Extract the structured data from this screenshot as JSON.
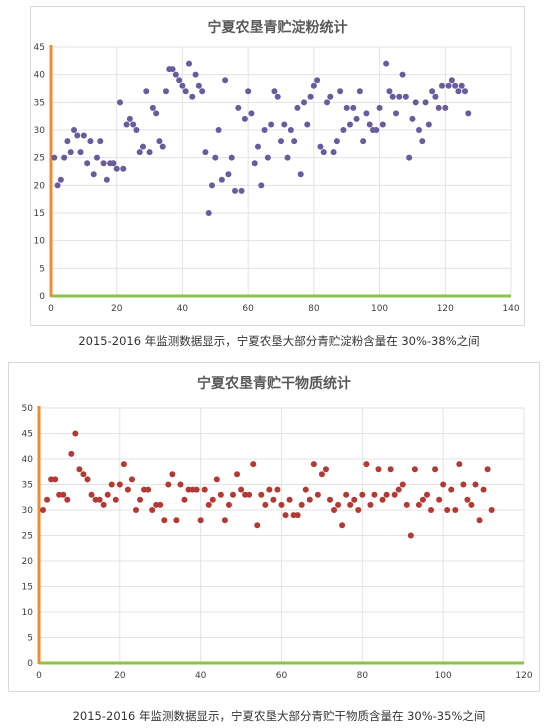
{
  "charts": [
    {
      "caption": "2015-2016 年监测数据显示，宁夏农垦大部分青贮淀粉含量在 30%-38%之间",
      "chart_data": {
        "type": "scatter",
        "title": "宁夏农垦青贮淀粉统计",
        "xlim": [
          0,
          140
        ],
        "ylim": [
          0,
          45
        ],
        "xticks": [
          0,
          20,
          40,
          60,
          80,
          100,
          120,
          140
        ],
        "yticks": [
          0,
          5,
          10,
          15,
          20,
          25,
          30,
          35,
          40,
          45
        ],
        "grid": true,
        "point_color": "#6a5a9e",
        "x_axis_color": "#8bc34a",
        "y_axis_color": "#f08c2d",
        "series": [
          {
            "points": [
              [
                1,
                25
              ],
              [
                2,
                20
              ],
              [
                3,
                21
              ],
              [
                4,
                25
              ],
              [
                5,
                28
              ],
              [
                6,
                26
              ],
              [
                7,
                30
              ],
              [
                8,
                29
              ],
              [
                9,
                26
              ],
              [
                10,
                29
              ],
              [
                11,
                24
              ],
              [
                12,
                28
              ],
              [
                13,
                22
              ],
              [
                14,
                25
              ],
              [
                15,
                28
              ],
              [
                16,
                24
              ],
              [
                17,
                21
              ],
              [
                18,
                24
              ],
              [
                19,
                24
              ],
              [
                20,
                23
              ],
              [
                21,
                35
              ],
              [
                22,
                23
              ],
              [
                23,
                31
              ],
              [
                24,
                32
              ],
              [
                25,
                31
              ],
              [
                26,
                30
              ],
              [
                27,
                26
              ],
              [
                28,
                27
              ],
              [
                29,
                37
              ],
              [
                30,
                26
              ],
              [
                31,
                34
              ],
              [
                32,
                33
              ],
              [
                33,
                28
              ],
              [
                34,
                27
              ],
              [
                35,
                37
              ],
              [
                36,
                41
              ],
              [
                37,
                41
              ],
              [
                38,
                40
              ],
              [
                39,
                39
              ],
              [
                40,
                38
              ],
              [
                41,
                37
              ],
              [
                42,
                42
              ],
              [
                43,
                36
              ],
              [
                44,
                40
              ],
              [
                45,
                38
              ],
              [
                46,
                37
              ],
              [
                47,
                26
              ],
              [
                48,
                15
              ],
              [
                49,
                20
              ],
              [
                50,
                25
              ],
              [
                51,
                30
              ],
              [
                52,
                21
              ],
              [
                53,
                39
              ],
              [
                54,
                22
              ],
              [
                55,
                25
              ],
              [
                56,
                19
              ],
              [
                57,
                34
              ],
              [
                58,
                19
              ],
              [
                59,
                32
              ],
              [
                60,
                37
              ],
              [
                61,
                33
              ],
              [
                62,
                24
              ],
              [
                63,
                27
              ],
              [
                64,
                20
              ],
              [
                65,
                30
              ],
              [
                66,
                25
              ],
              [
                67,
                31
              ],
              [
                68,
                37
              ],
              [
                69,
                36
              ],
              [
                70,
                28
              ],
              [
                71,
                31
              ],
              [
                72,
                25
              ],
              [
                73,
                30
              ],
              [
                74,
                28
              ],
              [
                75,
                34
              ],
              [
                76,
                22
              ],
              [
                77,
                35
              ],
              [
                78,
                31
              ],
              [
                79,
                36
              ],
              [
                80,
                38
              ],
              [
                81,
                39
              ],
              [
                82,
                27
              ],
              [
                83,
                26
              ],
              [
                84,
                35
              ],
              [
                85,
                36
              ],
              [
                86,
                26
              ],
              [
                87,
                28
              ],
              [
                88,
                37
              ],
              [
                89,
                30
              ],
              [
                90,
                34
              ],
              [
                91,
                31
              ],
              [
                92,
                34
              ],
              [
                93,
                32
              ],
              [
                94,
                37
              ],
              [
                95,
                28
              ],
              [
                96,
                33
              ],
              [
                97,
                31
              ],
              [
                98,
                30
              ],
              [
                99,
                30
              ],
              [
                100,
                34
              ],
              [
                101,
                31
              ],
              [
                102,
                42
              ],
              [
                103,
                37
              ],
              [
                104,
                36
              ],
              [
                105,
                33
              ],
              [
                106,
                36
              ],
              [
                107,
                40
              ],
              [
                108,
                36
              ],
              [
                109,
                25
              ],
              [
                110,
                32
              ],
              [
                111,
                35
              ],
              [
                112,
                30
              ],
              [
                113,
                28
              ],
              [
                114,
                35
              ],
              [
                115,
                31
              ],
              [
                116,
                37
              ],
              [
                117,
                36
              ],
              [
                118,
                34
              ],
              [
                119,
                38
              ],
              [
                120,
                34
              ],
              [
                121,
                38
              ],
              [
                122,
                39
              ],
              [
                123,
                38
              ],
              [
                124,
                37
              ],
              [
                125,
                38
              ],
              [
                126,
                37
              ],
              [
                127,
                33
              ]
            ]
          }
        ]
      }
    },
    {
      "caption": "2015-2016 年监测数据显示，宁夏农垦大部分青贮干物质含量在 30%-35%之间",
      "chart_data": {
        "type": "scatter",
        "title": "宁夏农垦青贮干物质统计",
        "xlim": [
          0,
          120
        ],
        "ylim": [
          0,
          50
        ],
        "xticks": [
          0,
          20,
          40,
          60,
          80,
          100,
          120
        ],
        "yticks": [
          0,
          5,
          10,
          15,
          20,
          25,
          30,
          35,
          40,
          45,
          50
        ],
        "grid": true,
        "point_color": "#b23a32",
        "x_axis_color": "#8bc34a",
        "y_axis_color": "#f08c2d",
        "series": [
          {
            "points": [
              [
                1,
                30
              ],
              [
                2,
                32
              ],
              [
                3,
                36
              ],
              [
                4,
                36
              ],
              [
                5,
                33
              ],
              [
                6,
                33
              ],
              [
                7,
                32
              ],
              [
                8,
                41
              ],
              [
                9,
                45
              ],
              [
                10,
                38
              ],
              [
                11,
                37
              ],
              [
                12,
                36
              ],
              [
                13,
                33
              ],
              [
                14,
                32
              ],
              [
                15,
                32
              ],
              [
                16,
                31
              ],
              [
                17,
                33
              ],
              [
                18,
                35
              ],
              [
                19,
                32
              ],
              [
                20,
                35
              ],
              [
                21,
                39
              ],
              [
                22,
                34
              ],
              [
                23,
                36
              ],
              [
                24,
                30
              ],
              [
                25,
                32
              ],
              [
                26,
                34
              ],
              [
                27,
                34
              ],
              [
                28,
                30
              ],
              [
                29,
                31
              ],
              [
                30,
                31
              ],
              [
                31,
                28
              ],
              [
                32,
                35
              ],
              [
                33,
                37
              ],
              [
                34,
                28
              ],
              [
                35,
                35
              ],
              [
                36,
                32
              ],
              [
                37,
                34
              ],
              [
                38,
                34
              ],
              [
                39,
                34
              ],
              [
                40,
                28
              ],
              [
                41,
                34
              ],
              [
                42,
                31
              ],
              [
                43,
                32
              ],
              [
                44,
                36
              ],
              [
                45,
                33
              ],
              [
                46,
                28
              ],
              [
                47,
                31
              ],
              [
                48,
                33
              ],
              [
                49,
                37
              ],
              [
                50,
                34
              ],
              [
                51,
                33
              ],
              [
                52,
                33
              ],
              [
                53,
                39
              ],
              [
                54,
                27
              ],
              [
                55,
                33
              ],
              [
                56,
                31
              ],
              [
                57,
                34
              ],
              [
                58,
                32
              ],
              [
                59,
                34
              ],
              [
                60,
                31
              ],
              [
                61,
                29
              ],
              [
                62,
                32
              ],
              [
                63,
                29
              ],
              [
                64,
                29
              ],
              [
                65,
                31
              ],
              [
                66,
                34
              ],
              [
                67,
                32
              ],
              [
                68,
                39
              ],
              [
                69,
                33
              ],
              [
                70,
                37
              ],
              [
                71,
                38
              ],
              [
                72,
                32
              ],
              [
                73,
                30
              ],
              [
                74,
                31
              ],
              [
                75,
                27
              ],
              [
                76,
                33
              ],
              [
                77,
                31
              ],
              [
                78,
                32
              ],
              [
                79,
                30
              ],
              [
                80,
                33
              ],
              [
                81,
                39
              ],
              [
                82,
                31
              ],
              [
                83,
                33
              ],
              [
                84,
                38
              ],
              [
                85,
                32
              ],
              [
                86,
                33
              ],
              [
                87,
                38
              ],
              [
                88,
                33
              ],
              [
                89,
                34
              ],
              [
                90,
                35
              ],
              [
                91,
                31
              ],
              [
                92,
                25
              ],
              [
                93,
                38
              ],
              [
                94,
                31
              ],
              [
                95,
                32
              ],
              [
                96,
                33
              ],
              [
                97,
                30
              ],
              [
                98,
                38
              ],
              [
                99,
                32
              ],
              [
                100,
                35
              ],
              [
                101,
                30
              ],
              [
                102,
                34
              ],
              [
                103,
                30
              ],
              [
                104,
                39
              ],
              [
                105,
                35
              ],
              [
                106,
                32
              ],
              [
                107,
                31
              ],
              [
                108,
                35
              ],
              [
                109,
                28
              ],
              [
                110,
                34
              ],
              [
                111,
                38
              ],
              [
                112,
                30
              ]
            ]
          }
        ]
      }
    }
  ]
}
